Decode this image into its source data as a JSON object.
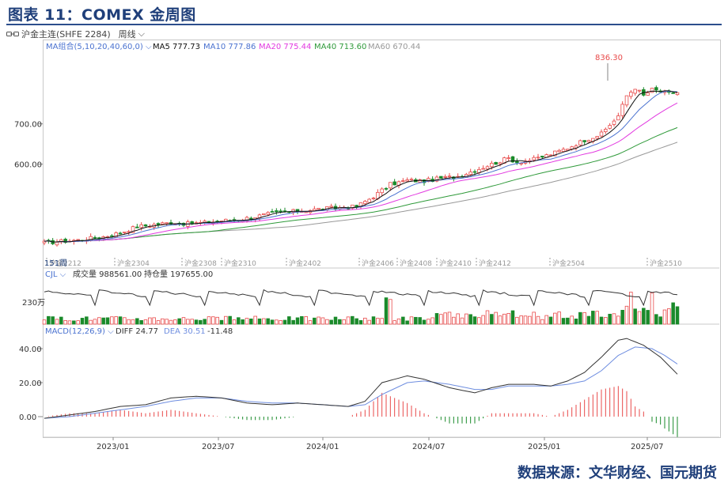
{
  "figure_title": "图表 11：COMEX 金周图",
  "toolbar": {
    "symbol_label": "沪金主连(SHFE 2284)",
    "period_label": "周线"
  },
  "source": "数据来源：文华财经、国元期货",
  "colors": {
    "up": "#e84a4a",
    "down": "#1a8a2a",
    "ma5": "#111111",
    "ma10": "#4a72d0",
    "ma20": "#e23ae0",
    "ma40": "#2f9a3a",
    "ma60": "#999999",
    "diff": "#333333",
    "dea": "#6f8ee0",
    "accent": "#1f3f7a"
  },
  "chart_data": [
    {
      "type": "candlestick",
      "legend": {
        "group_label": "MA组合(5,10,20,40,60,0)",
        "items": [
          {
            "label": "MA5",
            "value": "777.73"
          },
          {
            "label": "MA10",
            "value": "777.86"
          },
          {
            "label": "MA20",
            "value": "775.44"
          },
          {
            "label": "MA40",
            "value": "713.60"
          },
          {
            "label": "MA60",
            "value": "670.44"
          }
        ]
      },
      "y_ticks": [
        "700.00",
        "600.00"
      ],
      "ylim": [
        360,
        870
      ],
      "max_label": "836.30",
      "corner_label": "151周",
      "contract_labels": [
        "沪金2212",
        "沪金2304",
        "沪金2308",
        "沪金2310",
        "沪金2402",
        "沪金2406",
        "沪金2408",
        "沪金2410",
        "沪金2412",
        "沪金2504",
        "沪金2510"
      ],
      "close_anchors": [
        [
          0,
          405
        ],
        [
          8,
          412
        ],
        [
          14,
          420
        ],
        [
          18,
          430
        ],
        [
          22,
          445
        ],
        [
          26,
          450
        ],
        [
          30,
          455
        ],
        [
          34,
          452
        ],
        [
          38,
          455
        ],
        [
          42,
          460
        ],
        [
          46,
          462
        ],
        [
          50,
          470
        ],
        [
          54,
          478
        ],
        [
          58,
          482
        ],
        [
          62,
          485
        ],
        [
          66,
          490
        ],
        [
          70,
          492
        ],
        [
          74,
          495
        ],
        [
          78,
          520
        ],
        [
          82,
          550
        ],
        [
          86,
          560
        ],
        [
          90,
          558
        ],
        [
          94,
          565
        ],
        [
          98,
          570
        ],
        [
          102,
          585
        ],
        [
          106,
          600
        ],
        [
          110,
          615
        ],
        [
          112,
          605
        ],
        [
          116,
          612
        ],
        [
          120,
          625
        ],
        [
          124,
          640
        ],
        [
          128,
          660
        ],
        [
          132,
          675
        ],
        [
          136,
          720
        ],
        [
          138,
          770
        ],
        [
          140,
          790
        ],
        [
          142,
          770
        ],
        [
          144,
          785
        ],
        [
          146,
          780
        ],
        [
          148,
          775
        ],
        [
          150,
          778
        ]
      ],
      "ma_end": {
        "ma5": 777.73,
        "ma10": 777.86,
        "ma20": 775.44,
        "ma40": 713.6,
        "ma60": 670.44
      }
    },
    {
      "type": "bar",
      "legend": {
        "group_label": "CJL",
        "items": [
          {
            "label": "成交量",
            "value": "988561.00"
          },
          {
            "label": "持仓量",
            "value": "197655.00"
          }
        ]
      },
      "y_ticks": [
        "230万"
      ]
    },
    {
      "type": "line",
      "legend": {
        "group_label": "MACD(12,26,9)",
        "items": [
          {
            "label": "DIFF",
            "value": "24.77"
          },
          {
            "label": "DEA",
            "value": "30.51"
          },
          {
            "label": "",
            "value": "-11.48"
          }
        ]
      },
      "y_ticks": [
        "40.00",
        "20.00",
        "0.00"
      ],
      "ylim": [
        -14,
        50
      ],
      "diff_anchors": [
        [
          0,
          -1
        ],
        [
          6,
          1
        ],
        [
          12,
          3
        ],
        [
          18,
          6
        ],
        [
          24,
          7
        ],
        [
          30,
          11
        ],
        [
          36,
          12
        ],
        [
          42,
          11
        ],
        [
          48,
          8
        ],
        [
          54,
          7
        ],
        [
          60,
          8
        ],
        [
          66,
          7
        ],
        [
          72,
          6
        ],
        [
          76,
          9
        ],
        [
          80,
          20
        ],
        [
          86,
          24
        ],
        [
          90,
          22
        ],
        [
          96,
          17
        ],
        [
          102,
          14
        ],
        [
          106,
          17
        ],
        [
          110,
          19
        ],
        [
          116,
          19
        ],
        [
          120,
          18
        ],
        [
          124,
          21
        ],
        [
          128,
          26
        ],
        [
          132,
          35
        ],
        [
          136,
          45
        ],
        [
          138,
          46
        ],
        [
          142,
          42
        ],
        [
          146,
          35
        ],
        [
          150,
          25
        ]
      ],
      "dea_anchors": [
        [
          0,
          -1
        ],
        [
          6,
          0
        ],
        [
          12,
          2
        ],
        [
          18,
          4
        ],
        [
          24,
          6
        ],
        [
          30,
          9
        ],
        [
          36,
          11
        ],
        [
          42,
          11
        ],
        [
          48,
          9
        ],
        [
          54,
          8
        ],
        [
          60,
          8
        ],
        [
          66,
          7
        ],
        [
          72,
          6
        ],
        [
          76,
          7
        ],
        [
          80,
          13
        ],
        [
          86,
          20
        ],
        [
          90,
          21
        ],
        [
          96,
          19
        ],
        [
          102,
          16
        ],
        [
          106,
          16
        ],
        [
          110,
          18
        ],
        [
          116,
          18
        ],
        [
          120,
          18
        ],
        [
          124,
          19
        ],
        [
          128,
          21
        ],
        [
          132,
          27
        ],
        [
          136,
          36
        ],
        [
          140,
          41
        ],
        [
          144,
          40
        ],
        [
          147,
          36
        ],
        [
          150,
          31
        ]
      ]
    }
  ],
  "x_axis_labels": [
    "2023/01",
    "2023/07",
    "2024/01",
    "2024/07",
    "2025/01",
    "2025/07"
  ]
}
